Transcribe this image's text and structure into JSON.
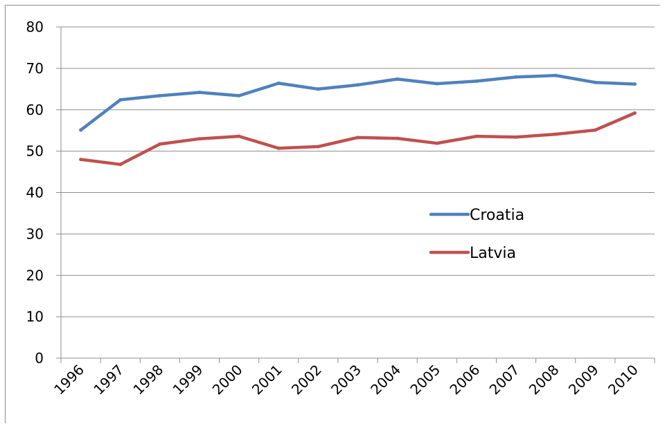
{
  "chart_data": {
    "type": "line",
    "title": "",
    "xlabel": "",
    "ylabel": "",
    "x": [
      "1996",
      "1997",
      "1998",
      "1999",
      "2000",
      "2001",
      "2002",
      "2003",
      "2004",
      "2005",
      "2006",
      "2007",
      "2008",
      "2009",
      "2010"
    ],
    "ylim": [
      0,
      80
    ],
    "yticks": [
      0,
      10,
      20,
      30,
      40,
      50,
      60,
      70,
      80
    ],
    "grid": true,
    "legend_position": "right",
    "series": [
      {
        "name": "Croatia",
        "color": "#4f81bd",
        "values": [
          55.1,
          62.4,
          63.4,
          64.2,
          63.4,
          66.4,
          65.0,
          66.0,
          67.4,
          66.3,
          66.9,
          67.9,
          68.3,
          66.6,
          66.2
        ]
      },
      {
        "name": "Latvia",
        "color": "#c0504d",
        "values": [
          48.0,
          46.8,
          51.7,
          53.0,
          53.6,
          50.7,
          51.1,
          53.3,
          53.1,
          51.9,
          53.6,
          53.4,
          54.1,
          55.1,
          59.2
        ]
      }
    ]
  }
}
